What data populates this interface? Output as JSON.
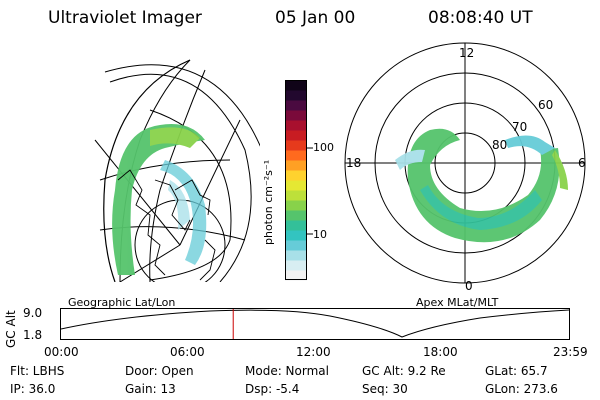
{
  "header": {
    "title": "Ultraviolet Imager",
    "date": "05 Jan 00",
    "time": "08:08:40 UT"
  },
  "left_panel": {
    "label": "Geographic Lat/Lon"
  },
  "right_panel": {
    "label": "Apex MLat/MLT",
    "mlt_labels": {
      "top": "12",
      "right": "6",
      "bottom": "0",
      "left": "18"
    },
    "lat_labels": [
      "80",
      "70",
      "60"
    ]
  },
  "colorbar": {
    "unit_label": "photon cm⁻²s⁻¹",
    "tick_labels": [
      "100",
      "10"
    ],
    "colors": [
      "#f2f2f2",
      "#d8eef2",
      "#a8e0e8",
      "#66ccd8",
      "#33c4c0",
      "#33c099",
      "#55c46c",
      "#88d24a",
      "#bde03a",
      "#e5e833",
      "#ffd22e",
      "#ffa024",
      "#ff6a1e",
      "#e63a1c",
      "#c81c22",
      "#a8102e",
      "#7a0a3a",
      "#4a0a40",
      "#22082e",
      "#100418"
    ]
  },
  "altitude_strip": {
    "ylabel": "GC Alt",
    "ytick_top": "9.0",
    "ytick_bottom": "1.8",
    "xticks": [
      "00:00",
      "06:00",
      "12:00",
      "18:00",
      "23:59"
    ],
    "current_time_fraction": 0.339,
    "marker_color": "#cc0000"
  },
  "status": {
    "flt": "Flt: LBHS",
    "ip": "IP: 36.0",
    "door": "Door: Open",
    "gain": "Gain: 13",
    "mode": "Mode: Normal",
    "dsp": "Dsp:   -5.4",
    "gc_alt": "GC Alt: 9.2 Re",
    "seq": "Seq: 30",
    "glat": "GLat:  65.7",
    "glon": "GLon: 273.6"
  }
}
